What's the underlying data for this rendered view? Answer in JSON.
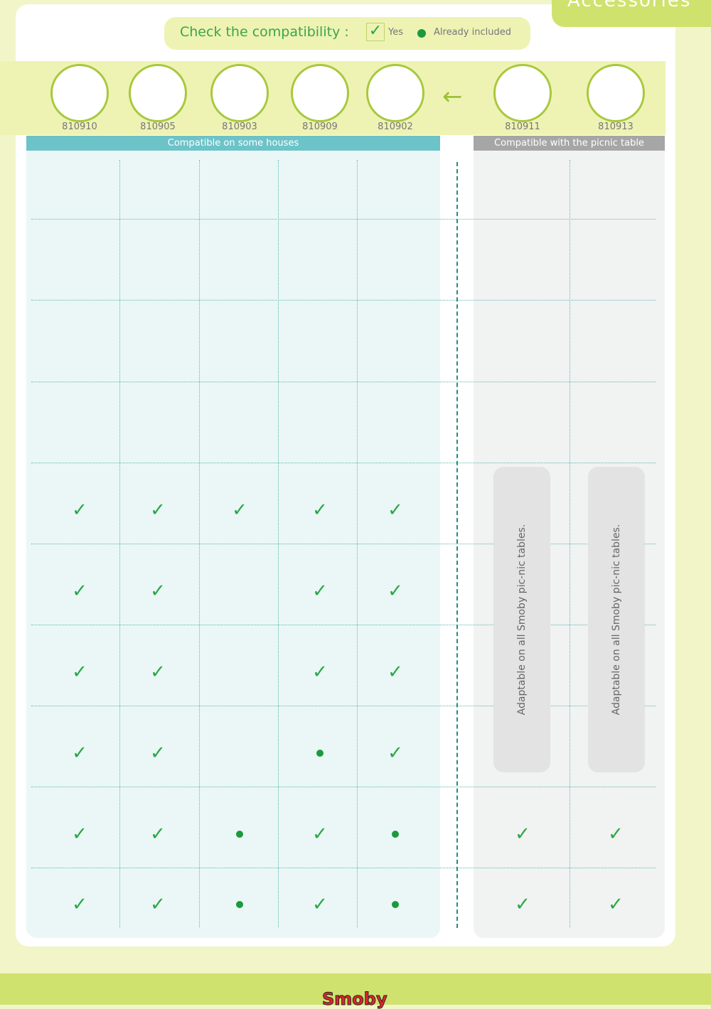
{
  "section_title": "Accessories",
  "legend": {
    "title": "Check the compatibility :",
    "yes": "Yes",
    "included": "Already included"
  },
  "products_houses": [
    "810910",
    "810905",
    "810903",
    "810909",
    "810902"
  ],
  "products_table": [
    "810911",
    "810913"
  ],
  "headers": {
    "houses": "Compatible on some houses",
    "table": "Compatible with the picnic table"
  },
  "rows": [
    {
      "houses": [
        "",
        "",
        "",
        "",
        ""
      ],
      "table": [
        "",
        ""
      ]
    },
    {
      "houses": [
        "",
        "",
        "",
        "",
        ""
      ],
      "table": [
        "",
        ""
      ]
    },
    {
      "houses": [
        "",
        "",
        "",
        "",
        ""
      ],
      "table": [
        "",
        ""
      ]
    },
    {
      "houses": [
        "",
        "",
        "",
        "",
        ""
      ],
      "table": [
        "",
        ""
      ]
    },
    {
      "houses": [
        "check",
        "check",
        "check",
        "check",
        "check"
      ],
      "table": [
        "",
        ""
      ]
    },
    {
      "houses": [
        "check",
        "check",
        "",
        "check",
        "check"
      ],
      "table": [
        "",
        ""
      ]
    },
    {
      "houses": [
        "check",
        "check",
        "",
        "check",
        "check"
      ],
      "table": [
        "",
        ""
      ]
    },
    {
      "houses": [
        "check",
        "check",
        "",
        "dot",
        "check"
      ],
      "table": [
        "",
        ""
      ]
    },
    {
      "houses": [
        "check",
        "check",
        "dot",
        "check",
        "dot"
      ],
      "table": [
        "check",
        "check"
      ]
    },
    {
      "houses": [
        "check",
        "check",
        "dot",
        "check",
        "dot"
      ],
      "table": [
        "check",
        "check"
      ]
    }
  ],
  "pill_text": "Adaptable on all Smoby pic-nic tables.",
  "brand": "Smoby",
  "colors": {
    "check": "#2aa745",
    "dot": "#1a9a3c",
    "teal_header": "#6cc3c8",
    "gray_header": "#a6a6a6",
    "lime": "#cfe26e"
  }
}
